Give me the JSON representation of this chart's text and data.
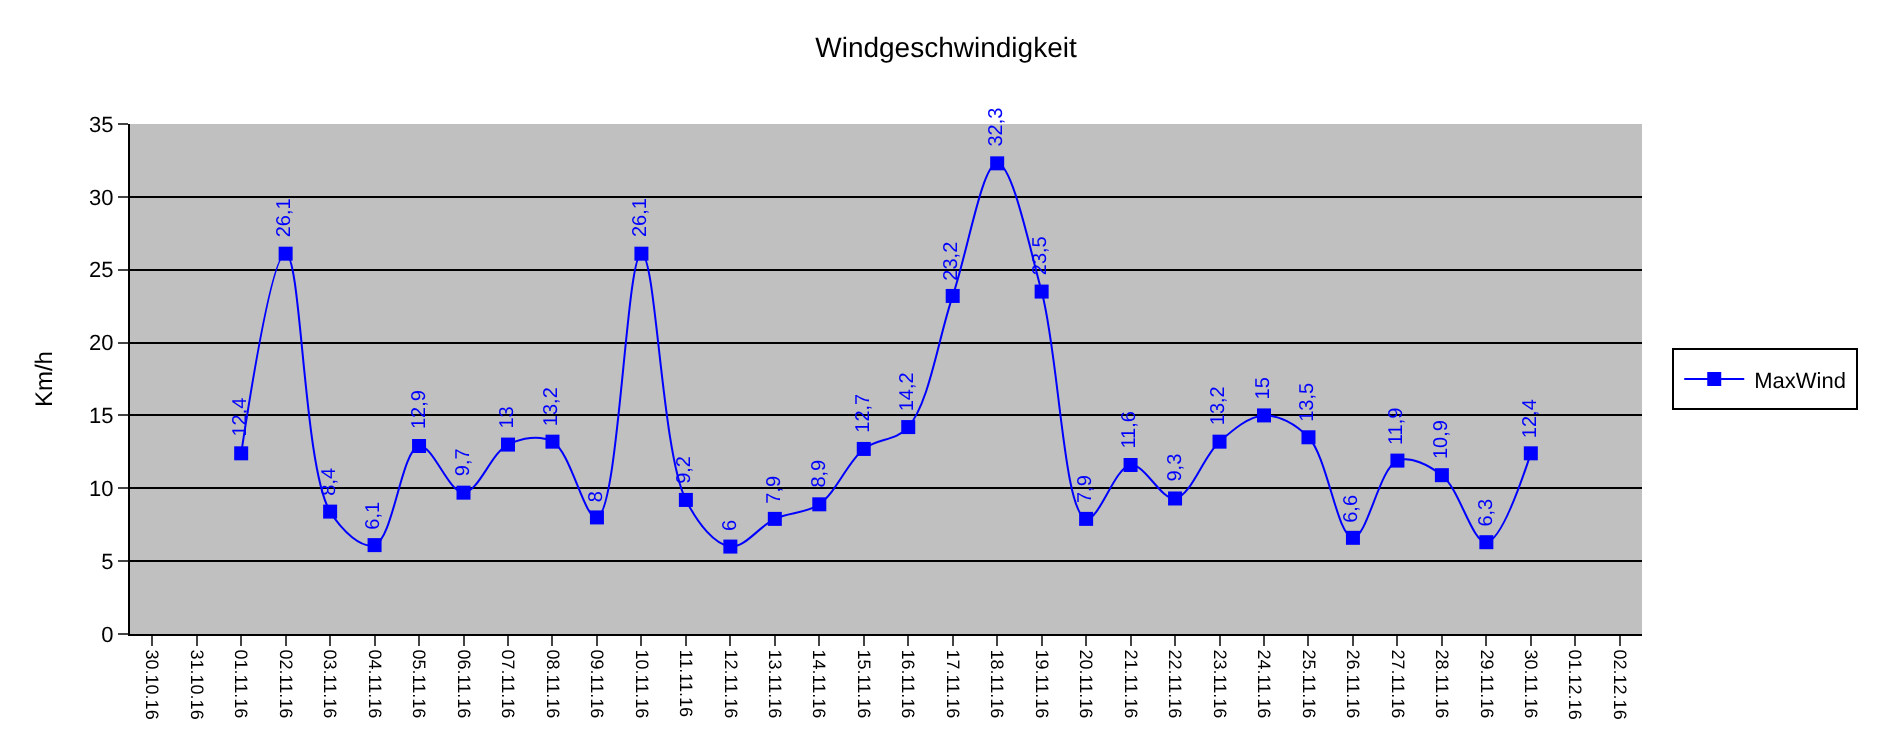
{
  "chart_data": {
    "type": "line",
    "title": "Windgeschwindigkeit",
    "ylabel": "Km/h",
    "categories": [
      "30.10.16",
      "31.10.16",
      "01.11.16",
      "02.11.16",
      "03.11.16",
      "04.11.16",
      "05.11.16",
      "06.11.16",
      "07.11.16",
      "08.11.16",
      "09.11.16",
      "10.11.16",
      "11.11.16",
      "12.11.16",
      "13.11.16",
      "14.11.16",
      "15.11.16",
      "16.11.16",
      "17.11.16",
      "18.11.16",
      "19.11.16",
      "20.11.16",
      "21.11.16",
      "22.11.16",
      "23.11.16",
      "24.11.16",
      "25.11.16",
      "26.11.16",
      "27.11.16",
      "28.11.16",
      "29.11.16",
      "30.11.16",
      "01.12.16",
      "02.12.16"
    ],
    "series": [
      {
        "name": "MaxWind",
        "color": "#0000ff",
        "values": [
          null,
          null,
          12.4,
          26.1,
          8.4,
          6.1,
          12.9,
          9.7,
          13,
          13.2,
          8,
          26.1,
          9.2,
          6,
          7.9,
          8.9,
          12.7,
          14.2,
          23.2,
          32.3,
          23.5,
          7.9,
          11.6,
          9.3,
          13.2,
          15,
          13.5,
          6.6,
          11.9,
          10.9,
          6.3,
          12.4,
          null,
          null
        ],
        "value_labels": [
          null,
          null,
          "12,4",
          "26,1",
          "8,4",
          "6,1",
          "12,9",
          "9,7",
          "13",
          "13,2",
          "8",
          "26,1",
          "9,2",
          "6",
          "7,9",
          "8,9",
          "12,7",
          "14,2",
          "23,2",
          "32,3",
          "23,5",
          "7,9",
          "11,6",
          "9,3",
          "13,2",
          "15",
          "13,5",
          "6,6",
          "11,9",
          "10,9",
          "6,3",
          "12,4",
          null,
          null
        ]
      }
    ],
    "ylim": [
      0,
      35
    ],
    "yticks": [
      0,
      5,
      10,
      15,
      20,
      25,
      30,
      35
    ],
    "grid": "y",
    "legend": "right",
    "marker": "square",
    "line_style": "solid"
  }
}
